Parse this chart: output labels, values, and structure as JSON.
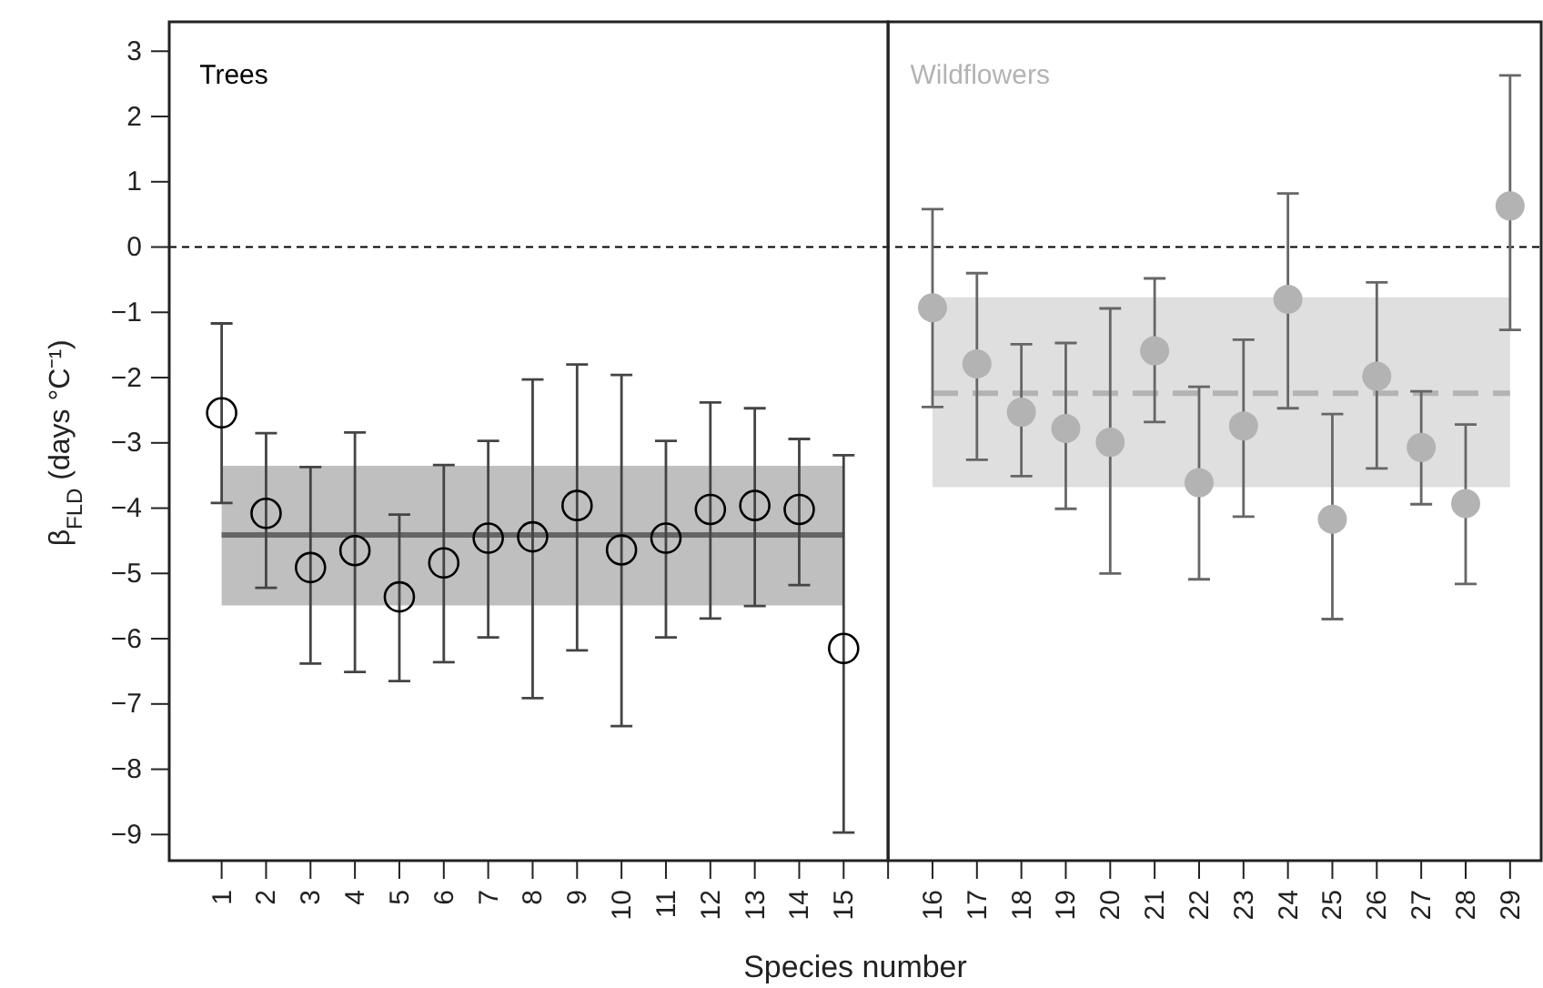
{
  "chart_data": {
    "type": "scatter",
    "xlabel": "Species number",
    "ylabel": "β$_{FLD}$ (days °C⁻¹)",
    "categories": [
      "1",
      "2",
      "3",
      "4",
      "5",
      "6",
      "7",
      "8",
      "9",
      "10",
      "11",
      "12",
      "13",
      "14",
      "15",
      null,
      "16",
      "17",
      "18",
      "19",
      "20",
      "21",
      "22",
      "23",
      "24",
      "25",
      "26",
      "27",
      "28",
      "29"
    ],
    "ylim": [
      -9.4,
      3.45
    ],
    "yticks": [
      -9,
      -8,
      -7,
      -6,
      -5,
      -4,
      -3,
      -2,
      -1,
      0,
      1,
      2,
      3
    ],
    "marker": "circle",
    "legend": false,
    "grid": false,
    "ref_lines": [
      {
        "axis": "y",
        "value": 0,
        "label": null,
        "color": "#000000",
        "line_style": "dashed"
      }
    ],
    "series": [
      {
        "type": "line",
        "marker": "none",
        "color": "#666666",
        "line_style": "solid",
        "values": [
          -4.41,
          -4.41,
          -4.41,
          -4.41,
          -4.41,
          -4.41,
          -4.41,
          -4.41,
          -4.41,
          -4.41,
          -4.41,
          -4.41,
          -4.41,
          -4.41,
          -4.41,
          null,
          null,
          null,
          null,
          null,
          null,
          null,
          null,
          null,
          null,
          null,
          null,
          null,
          null,
          null
        ],
        "lower": [
          -5.49,
          -5.49,
          -5.49,
          -5.49,
          -5.49,
          -5.49,
          -5.49,
          -5.49,
          -5.49,
          -5.49,
          -5.49,
          -5.49,
          -5.49,
          -5.49,
          -5.49,
          null,
          null,
          null,
          null,
          null,
          null,
          null,
          null,
          null,
          null,
          null,
          null,
          null,
          null,
          null
        ],
        "upper": [
          -3.35,
          -3.35,
          -3.35,
          -3.35,
          -3.35,
          -3.35,
          -3.35,
          -3.35,
          -3.35,
          -3.35,
          -3.35,
          -3.35,
          -3.35,
          -3.35,
          -3.35,
          null,
          null,
          null,
          null,
          null,
          null,
          null,
          null,
          null,
          null,
          null,
          null,
          null,
          null,
          null
        ]
      },
      {
        "type": "line",
        "marker": "none",
        "color": "#b3b3b3",
        "line_style": "dashed",
        "values": [
          null,
          null,
          null,
          null,
          null,
          null,
          null,
          null,
          null,
          null,
          null,
          null,
          null,
          null,
          null,
          null,
          -2.24,
          -2.24,
          -2.24,
          -2.24,
          -2.24,
          -2.24,
          -2.24,
          -2.24,
          -2.24,
          -2.24,
          -2.24,
          -2.24,
          -2.24,
          -2.24
        ],
        "lower": [
          null,
          null,
          null,
          null,
          null,
          null,
          null,
          null,
          null,
          null,
          null,
          null,
          null,
          null,
          null,
          null,
          -3.68,
          -3.68,
          -3.68,
          -3.68,
          -3.68,
          -3.68,
          -3.68,
          -3.68,
          -3.68,
          -3.68,
          -3.68,
          -3.68,
          -3.68,
          -3.68
        ],
        "upper": [
          null,
          null,
          null,
          null,
          null,
          null,
          null,
          null,
          null,
          null,
          null,
          null,
          null,
          null,
          null,
          null,
          -0.77,
          -0.77,
          -0.77,
          -0.77,
          -0.77,
          -0.77,
          -0.77,
          -0.77,
          -0.77,
          -0.77,
          -0.77,
          -0.77,
          -0.77,
          -0.77
        ]
      },
      {
        "name": "Trees",
        "color": "#000000",
        "values": [
          -2.54,
          -4.08,
          -4.91,
          -4.65,
          -5.36,
          -4.84,
          -4.46,
          -4.44,
          -3.96,
          -4.64,
          -4.46,
          -4.02,
          -3.96,
          -4.02,
          -6.15,
          null,
          null,
          null,
          null,
          null,
          null,
          null,
          null,
          null,
          null,
          null,
          null,
          null,
          null,
          null
        ],
        "errors": [
          [
            -3.92,
            -1.17
          ],
          [
            -5.22,
            -2.85
          ],
          [
            -6.38,
            -3.37
          ],
          [
            -6.51,
            -2.84
          ],
          [
            -6.65,
            -4.1
          ],
          [
            -6.36,
            -3.34
          ],
          [
            -5.98,
            -2.97
          ],
          [
            -6.91,
            -2.03
          ],
          [
            -6.18,
            -1.8
          ],
          [
            -7.34,
            -1.96
          ],
          [
            -5.98,
            -2.97
          ],
          [
            -5.69,
            -2.38
          ],
          [
            -5.5,
            -2.47
          ],
          [
            -5.18,
            -2.94
          ],
          [
            -8.97,
            -3.19
          ],
          null,
          null,
          null,
          null,
          null,
          null,
          null,
          null,
          null,
          null,
          null,
          null,
          null,
          null,
          null
        ]
      },
      {
        "name": "Wildflowers",
        "color": "#b3b3b3",
        "values": [
          null,
          null,
          null,
          null,
          null,
          null,
          null,
          null,
          null,
          null,
          null,
          null,
          null,
          null,
          null,
          null,
          -0.93,
          -1.79,
          -2.53,
          -2.78,
          -2.99,
          -1.59,
          -3.61,
          -2.74,
          -0.8,
          -4.17,
          -1.98,
          -3.07,
          -3.93,
          0.63
        ],
        "errors": [
          null,
          null,
          null,
          null,
          null,
          null,
          null,
          null,
          null,
          null,
          null,
          null,
          null,
          null,
          null,
          null,
          [
            -2.45,
            0.58
          ],
          [
            -3.26,
            -0.4
          ],
          [
            -3.51,
            -1.49
          ],
          [
            -4.01,
            -1.47
          ],
          [
            -5.0,
            -0.94
          ],
          [
            -2.68,
            -0.48
          ],
          [
            -5.09,
            -2.14
          ],
          [
            -4.13,
            -1.42
          ],
          [
            -2.47,
            0.82
          ],
          [
            -5.7,
            -2.56
          ],
          [
            -3.39,
            -0.54
          ],
          [
            -3.94,
            -2.21
          ],
          [
            -5.16,
            -2.72
          ],
          [
            -1.27,
            2.63
          ]
        ]
      }
    ]
  }
}
